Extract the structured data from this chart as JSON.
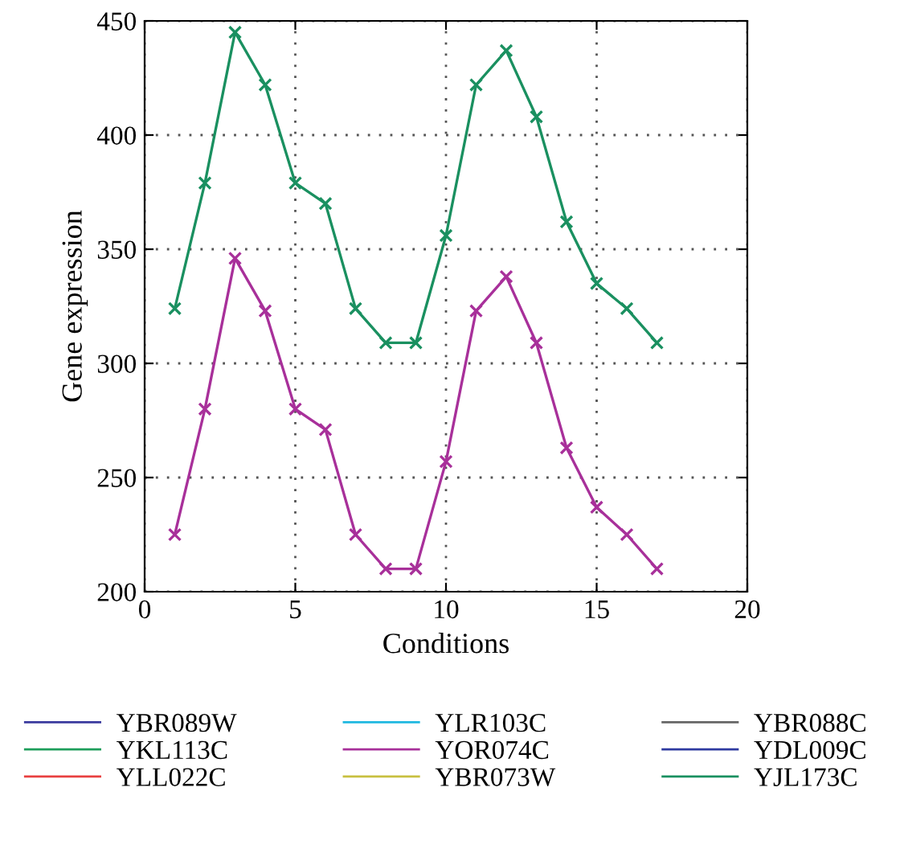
{
  "chart_data": {
    "type": "line",
    "xlabel": "Conditions",
    "ylabel": "Gene expression",
    "x": [
      1,
      2,
      3,
      4,
      5,
      6,
      7,
      8,
      9,
      10,
      11,
      12,
      13,
      14,
      15,
      16,
      17
    ],
    "xlim": [
      0,
      20
    ],
    "xticks": [
      0,
      5,
      10,
      15,
      20
    ],
    "ylim": [
      200,
      450
    ],
    "yticks": [
      200,
      250,
      300,
      350,
      400,
      450
    ],
    "grid": true,
    "legend": "bottom",
    "marker": "cross",
    "line_style": "solid",
    "series": [
      {
        "name": "YBR089W",
        "color": "#3a3a9e",
        "values": [
          null,
          null,
          null,
          null,
          null,
          null,
          null,
          null,
          null,
          null,
          null,
          null,
          null,
          null,
          null,
          null,
          null
        ]
      },
      {
        "name": "YLR103C",
        "color": "#1fb8e0",
        "values": [
          null,
          null,
          null,
          null,
          null,
          null,
          null,
          null,
          null,
          null,
          null,
          null,
          null,
          null,
          null,
          null,
          null
        ]
      },
      {
        "name": "YBR088C",
        "color": "#666666",
        "values": [
          null,
          null,
          null,
          null,
          null,
          null,
          null,
          null,
          null,
          null,
          null,
          null,
          null,
          null,
          null,
          null,
          null
        ]
      },
      {
        "name": "YKL113C",
        "color": "#1e9e5a",
        "values": [
          null,
          null,
          null,
          null,
          null,
          null,
          null,
          null,
          null,
          null,
          null,
          null,
          null,
          null,
          null,
          null,
          null
        ]
      },
      {
        "name": "YOR074C",
        "color": "#a8309a",
        "values": [
          225,
          280,
          346,
          323,
          280,
          271,
          225,
          210,
          210,
          257,
          323,
          338,
          309,
          263,
          237,
          225,
          210
        ]
      },
      {
        "name": "YDL009C",
        "color": "#2e3aa0",
        "values": [
          null,
          null,
          null,
          null,
          null,
          null,
          null,
          null,
          null,
          null,
          null,
          null,
          null,
          null,
          null,
          null,
          null
        ]
      },
      {
        "name": "YLL022C",
        "color": "#e84040",
        "values": [
          null,
          null,
          null,
          null,
          null,
          null,
          null,
          null,
          null,
          null,
          null,
          null,
          null,
          null,
          null,
          null,
          null
        ]
      },
      {
        "name": "YBR073W",
        "color": "#c8c040",
        "values": [
          null,
          null,
          null,
          null,
          null,
          null,
          null,
          null,
          null,
          null,
          null,
          null,
          null,
          null,
          null,
          null,
          null
        ]
      },
      {
        "name": "YJL173C",
        "color": "#1a9060",
        "values": [
          324,
          379,
          445,
          422,
          379,
          370,
          324,
          309,
          309,
          356,
          422,
          437,
          408,
          362,
          335,
          324,
          309
        ]
      }
    ]
  }
}
